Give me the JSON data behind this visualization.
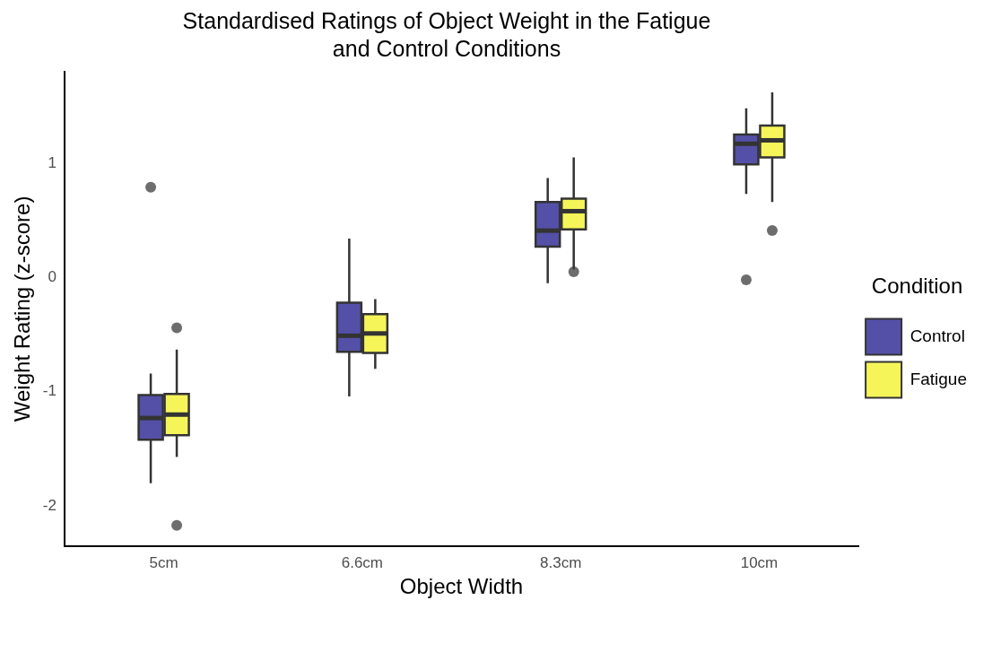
{
  "chart_data": {
    "type": "box",
    "title": "Standardised Ratings of Object Weight in the Fatigue and Control Conditions",
    "xlabel": "Object Width",
    "ylabel": "Weight Rating (z-score)",
    "legend_title": "Condition",
    "categories": [
      "5cm",
      "6.6cm",
      "8.3cm",
      "10cm"
    ],
    "series": [
      {
        "name": "Control",
        "color": "#5450a8",
        "boxes": [
          {
            "low": -1.8,
            "q1": -1.42,
            "median": -1.23,
            "q3": -1.03,
            "high": -0.84,
            "outliers": [
              0.79
            ]
          },
          {
            "low": -1.04,
            "q1": -0.65,
            "median": -0.51,
            "q3": -0.22,
            "high": 0.34
          },
          {
            "low": -0.05,
            "q1": 0.27,
            "median": 0.41,
            "q3": 0.66,
            "high": 0.87
          },
          {
            "low": 0.73,
            "q1": 0.99,
            "median": 1.17,
            "q3": 1.25,
            "high": 1.48,
            "outliers": [
              -0.02
            ]
          }
        ]
      },
      {
        "name": "Fatigue",
        "color": "#f5f55a",
        "boxes": [
          {
            "low": -1.57,
            "q1": -1.38,
            "median": -1.2,
            "q3": -1.02,
            "high": -0.63,
            "outliers": [
              -0.44,
              -2.17
            ]
          },
          {
            "low": -0.8,
            "q1": -0.66,
            "median": -0.49,
            "q3": -0.32,
            "high": -0.19
          },
          {
            "low": 0.07,
            "q1": 0.42,
            "median": 0.58,
            "q3": 0.69,
            "high": 1.05,
            "outliers": [
              0.05
            ]
          },
          {
            "low": 0.66,
            "q1": 1.05,
            "median": 1.2,
            "q3": 1.33,
            "high": 1.62,
            "outliers": [
              0.41
            ]
          }
        ]
      }
    ],
    "ylim": [
      -2.35,
      1.8
    ],
    "yticks": [
      -2,
      -1,
      0,
      1
    ],
    "grid": false,
    "legend": "right"
  }
}
